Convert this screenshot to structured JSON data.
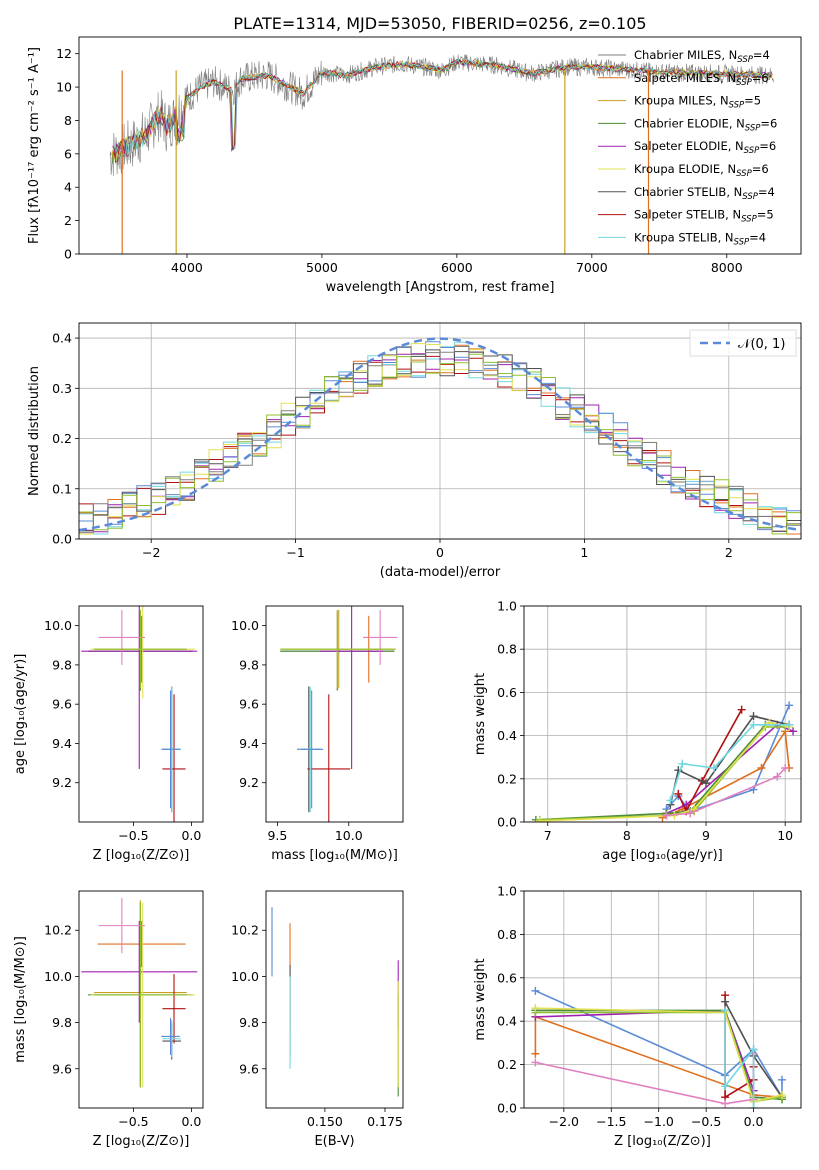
{
  "colors": {
    "gray": "#808080",
    "orange": "#e07020",
    "goldenrod": "#c8a020",
    "green": "#4c8c3c",
    "purple": "#a020b0",
    "yellow": "#e0e050",
    "darkgray": "#505050",
    "darkred": "#b01010",
    "cyan": "#70d8e0",
    "blue": "#5b8bd8",
    "pink": "#e080c0",
    "lime": "#90c030",
    "teal": "#409090"
  },
  "chart_data": [
    {
      "type": "line",
      "title": "PLATE=1314, MJD=53050, FIBERID=0256, z=0.105",
      "xlabel": "wavelength [Angstrom, rest frame]",
      "ylabel": "Flux [fλ10⁻¹⁷ erg cm⁻² s⁻¹ A⁻¹]",
      "xlim": [
        3200,
        8550
      ],
      "ylim": [
        0,
        13
      ],
      "xticks": [
        4000,
        5000,
        6000,
        7000,
        8000
      ],
      "yticks": [
        0,
        2,
        4,
        6,
        8,
        10,
        12
      ],
      "grid": false,
      "legend_position": "right",
      "observed_spectrum": {
        "x": [
          3420,
          3500,
          3600,
          3700,
          3800,
          3850,
          3900,
          4000,
          4100,
          4200,
          4340,
          4400,
          4600,
          4861,
          5000,
          5175,
          5400,
          5600,
          5890,
          6000,
          6300,
          6563,
          6800,
          7000,
          7500,
          8000,
          8350
        ],
        "y": [
          5.9,
          6.2,
          6.6,
          7.2,
          8.4,
          7.6,
          8.1,
          9.3,
          10.0,
          10.3,
          9.8,
          10.5,
          10.7,
          9.6,
          10.9,
          10.7,
          11.2,
          11.4,
          11.0,
          11.5,
          11.3,
          10.8,
          11.2,
          11.2,
          10.9,
          10.8,
          10.7
        ]
      },
      "series": [
        {
          "name": "Chabrier MILES, N_SSP=4",
          "color": "#808080"
        },
        {
          "name": "Salpeter MILES, N_SSP=6",
          "color": "#e07020"
        },
        {
          "name": "Kroupa MILES, N_SSP=5",
          "color": "#c8a020"
        },
        {
          "name": "Chabrier ELODIE, N_SSP=6",
          "color": "#4c8c3c"
        },
        {
          "name": "Salpeter ELODIE, N_SSP=6",
          "color": "#a020b0"
        },
        {
          "name": "Kroupa ELODIE, N_SSP=6",
          "color": "#e0e050"
        },
        {
          "name": "Chabrier STELIB, N_SSP=4",
          "color": "#505050"
        },
        {
          "name": "Salpeter STELIB, N_SSP=5",
          "color": "#b01010"
        },
        {
          "name": "Kroupa STELIB, N_SSP=4",
          "color": "#70d8e0"
        }
      ],
      "vertical_drops": [
        3520,
        3920,
        6800,
        7420
      ]
    },
    {
      "type": "line",
      "xlabel": "(data-model)/error",
      "ylabel": "Normed distribution",
      "xlim": [
        -2.5,
        2.5
      ],
      "ylim": [
        0,
        0.43
      ],
      "xticks": [
        -2,
        -1,
        0,
        1,
        2
      ],
      "yticks": [
        0.0,
        0.1,
        0.2,
        0.3,
        0.4
      ],
      "grid": true,
      "legend_position": "top-right",
      "legend": [
        "𝒩(0, 1)"
      ],
      "reference_curve": {
        "name": "N(0,1)",
        "mean": 0,
        "sd": 1,
        "color": "#5b8bd8",
        "style": "dashed"
      },
      "histogram_bin_width": 0.1,
      "histogram_series_count": 9,
      "histogram_amplitude": 0.36
    },
    {
      "type": "scatter",
      "xlabel": "Z [log₁₀(Z/Z⊙)]",
      "ylabel": "age  [log₁₀(age/yr)]",
      "xlim": [
        -0.97,
        0.1
      ],
      "ylim": [
        9.0,
        10.1
      ],
      "xticks": [
        -0.5,
        0.0
      ],
      "yticks": [
        9.2,
        9.4,
        9.6,
        9.8,
        10.0
      ],
      "points": [
        {
          "x": -0.44,
          "y": 9.87,
          "xerr": 0.45,
          "yerr": 0.2,
          "color": "#808080"
        },
        {
          "x": -0.43,
          "y": 9.88,
          "xerr": 0.38,
          "yerr": 0.17,
          "color": "#e07020"
        },
        {
          "x": -0.44,
          "y": 9.88,
          "xerr": 0.4,
          "yerr": 0.2,
          "color": "#c8a020"
        },
        {
          "x": -0.44,
          "y": 9.87,
          "xerr": 0.45,
          "yerr": 0.2,
          "color": "#4c8c3c"
        },
        {
          "x": -0.45,
          "y": 9.87,
          "xerr": 0.5,
          "yerr": 0.6,
          "color": "#a020b0"
        },
        {
          "x": -0.42,
          "y": 9.88,
          "xerr": 0.45,
          "yerr": 0.25,
          "color": "#e0e050"
        },
        {
          "x": -0.17,
          "y": 9.37,
          "xerr": 0.08,
          "yerr": 0.32,
          "color": "#505050"
        },
        {
          "x": -0.15,
          "y": 9.27,
          "xerr": 0.1,
          "yerr": 0.38,
          "color": "#b01010"
        },
        {
          "x": -0.17,
          "y": 9.37,
          "xerr": 0.08,
          "yerr": 0.32,
          "color": "#70d8e0"
        },
        {
          "x": -0.18,
          "y": 9.37,
          "xerr": 0.08,
          "yerr": 0.3,
          "color": "#5b8bd8"
        },
        {
          "x": -0.6,
          "y": 9.94,
          "xerr": 0.2,
          "yerr": 0.14,
          "color": "#e080c0"
        },
        {
          "x": -0.44,
          "y": 9.88,
          "xerr": 0.4,
          "yerr": 0.2,
          "color": "#90c030"
        }
      ]
    },
    {
      "type": "scatter",
      "xlabel": "mass [log₁₀(M/M⊙)]",
      "ylabel": "",
      "xlim": [
        9.42,
        10.38
      ],
      "ylim": [
        9.0,
        10.1
      ],
      "xticks": [
        9.5,
        10.0
      ],
      "yticks": [
        9.2,
        9.4,
        9.6,
        9.8,
        10.0
      ],
      "points": [
        {
          "x": 9.92,
          "y": 9.87,
          "xerr": 0.4,
          "yerr": 0.2,
          "color": "#808080"
        },
        {
          "x": 10.14,
          "y": 9.88,
          "xerr": 0.1,
          "yerr": 0.17,
          "color": "#e07020"
        },
        {
          "x": 9.93,
          "y": 9.88,
          "xerr": 0.4,
          "yerr": 0.2,
          "color": "#c8a020"
        },
        {
          "x": 9.92,
          "y": 9.87,
          "xerr": 0.4,
          "yerr": 0.2,
          "color": "#4c8c3c"
        },
        {
          "x": 10.02,
          "y": 9.87,
          "xerr": 0.22,
          "yerr": 0.6,
          "color": "#a020b0"
        },
        {
          "x": 9.92,
          "y": 9.88,
          "xerr": 0.4,
          "yerr": 0.2,
          "color": "#e0e050"
        },
        {
          "x": 9.72,
          "y": 9.37,
          "xerr": 0.08,
          "yerr": 0.32,
          "color": "#505050"
        },
        {
          "x": 9.86,
          "y": 9.27,
          "xerr": 0.15,
          "yerr": 0.38,
          "color": "#b01010"
        },
        {
          "x": 9.73,
          "y": 9.37,
          "xerr": 0.08,
          "yerr": 0.32,
          "color": "#70d8e0"
        },
        {
          "x": 9.74,
          "y": 9.37,
          "xerr": 0.08,
          "yerr": 0.3,
          "color": "#5b8bd8"
        },
        {
          "x": 10.22,
          "y": 9.94,
          "xerr": 0.12,
          "yerr": 0.14,
          "color": "#e080c0"
        },
        {
          "x": 9.92,
          "y": 9.88,
          "xerr": 0.4,
          "yerr": 0.2,
          "color": "#90c030"
        }
      ]
    },
    {
      "type": "line",
      "xlabel": "age  [log₁₀(age/yr)]",
      "ylabel": "mass weight",
      "xlim": [
        6.7,
        10.2
      ],
      "ylim": [
        0.0,
        1.0
      ],
      "xticks": [
        7,
        8,
        9,
        10
      ],
      "yticks": [
        0.0,
        0.2,
        0.4,
        0.6,
        0.8,
        1.0
      ],
      "grid": true,
      "series": [
        {
          "color": "#5b8bd8",
          "x": [
            8.5,
            8.65,
            8.8,
            9.6,
            10.05
          ],
          "y": [
            0.06,
            0.12,
            0.05,
            0.15,
            0.54
          ]
        },
        {
          "color": "#e07020",
          "x": [
            8.45,
            8.7,
            9.7,
            10.0,
            10.05
          ],
          "y": [
            0.02,
            0.06,
            0.25,
            0.42,
            0.25
          ]
        },
        {
          "color": "#a020b0",
          "x": [
            8.5,
            8.75,
            9.9,
            10.1
          ],
          "y": [
            0.04,
            0.08,
            0.45,
            0.42
          ]
        },
        {
          "color": "#b01010",
          "x": [
            8.65,
            8.75,
            8.95,
            9.45
          ],
          "y": [
            0.13,
            0.05,
            0.19,
            0.52
          ]
        },
        {
          "color": "#505050",
          "x": [
            8.55,
            8.65,
            9.0,
            9.6,
            10.05
          ],
          "y": [
            0.08,
            0.24,
            0.18,
            0.49,
            0.45
          ]
        },
        {
          "color": "#4c8c3c",
          "x": [
            6.85,
            8.5,
            8.8,
            9.75,
            10.05
          ],
          "y": [
            0.01,
            0.04,
            0.05,
            0.45,
            0.45
          ]
        },
        {
          "color": "#90c030",
          "x": [
            6.9,
            8.5,
            8.85,
            9.75,
            10.0
          ],
          "y": [
            0.01,
            0.03,
            0.05,
            0.44,
            0.44
          ]
        },
        {
          "color": "#e0e050",
          "x": [
            6.9,
            8.6,
            8.85,
            9.8,
            10.05
          ],
          "y": [
            0.005,
            0.03,
            0.06,
            0.46,
            0.44
          ]
        },
        {
          "color": "#e080c0",
          "x": [
            8.5,
            8.8,
            9.9,
            10.0
          ],
          "y": [
            0.03,
            0.04,
            0.21,
            0.25
          ]
        },
        {
          "color": "#70d8e0",
          "x": [
            8.55,
            8.7,
            9.1,
            9.6,
            10.05
          ],
          "y": [
            0.1,
            0.27,
            0.25,
            0.45,
            0.45
          ]
        }
      ]
    },
    {
      "type": "scatter",
      "xlabel": "Z [log₁₀(Z/Z⊙)]",
      "ylabel": "mass [log₁₀(M/M⊙)]",
      "xlim": [
        -0.97,
        0.1
      ],
      "ylim": [
        9.43,
        10.37
      ],
      "xticks": [
        -0.5,
        0.0
      ],
      "yticks": [
        9.6,
        9.8,
        10.0,
        10.2
      ],
      "points": [
        {
          "x": -0.44,
          "y": 9.92,
          "xerr": 0.45,
          "yerr": 0.4,
          "color": "#808080"
        },
        {
          "x": -0.43,
          "y": 10.14,
          "xerr": 0.38,
          "yerr": 0.1,
          "color": "#e07020"
        },
        {
          "x": -0.44,
          "y": 9.93,
          "xerr": 0.4,
          "yerr": 0.4,
          "color": "#c8a020"
        },
        {
          "x": -0.44,
          "y": 9.92,
          "xerr": 0.45,
          "yerr": 0.4,
          "color": "#4c8c3c"
        },
        {
          "x": -0.45,
          "y": 10.02,
          "xerr": 0.5,
          "yerr": 0.22,
          "color": "#a020b0"
        },
        {
          "x": -0.42,
          "y": 9.92,
          "xerr": 0.45,
          "yerr": 0.4,
          "color": "#e0e050"
        },
        {
          "x": -0.17,
          "y": 9.72,
          "xerr": 0.08,
          "yerr": 0.08,
          "color": "#505050"
        },
        {
          "x": -0.15,
          "y": 9.86,
          "xerr": 0.1,
          "yerr": 0.15,
          "color": "#b01010"
        },
        {
          "x": -0.17,
          "y": 9.73,
          "xerr": 0.08,
          "yerr": 0.08,
          "color": "#70d8e0"
        },
        {
          "x": -0.18,
          "y": 9.74,
          "xerr": 0.08,
          "yerr": 0.08,
          "color": "#5b8bd8"
        },
        {
          "x": -0.6,
          "y": 10.22,
          "xerr": 0.2,
          "yerr": 0.12,
          "color": "#e080c0"
        },
        {
          "x": -0.44,
          "y": 9.92,
          "xerr": 0.4,
          "yerr": 0.4,
          "color": "#90c030"
        }
      ]
    },
    {
      "type": "scatter",
      "xlabel": "E(B-V)",
      "ylabel": "",
      "xlim": [
        0.1255,
        0.1825
      ],
      "ylim": [
        9.43,
        10.37
      ],
      "xticks": [
        0.15,
        0.175
      ],
      "yticks": [
        9.6,
        9.8,
        10.0,
        10.2
      ],
      "points": [
        {
          "x": 0.128,
          "y": 10.14,
          "xerr": 0,
          "yerr": 0.1,
          "color": "#e080c0"
        },
        {
          "x": 0.128,
          "y": 10.15,
          "xerr": 0,
          "yerr": 0.15,
          "color": "#5b8bd8"
        },
        {
          "x": 0.1355,
          "y": 10.0,
          "xerr": 0,
          "yerr": 0.23,
          "color": "#e07020"
        },
        {
          "x": 0.1355,
          "y": 9.85,
          "xerr": 0,
          "yerr": 0.2,
          "color": "#505050"
        },
        {
          "x": 0.1355,
          "y": 9.8,
          "xerr": 0,
          "yerr": 0.2,
          "color": "#70d8e0"
        },
        {
          "x": 0.1805,
          "y": 9.92,
          "xerr": 0,
          "yerr": 0.15,
          "color": "#a020b0"
        },
        {
          "x": 0.1805,
          "y": 9.7,
          "xerr": 0,
          "yerr": 0.22,
          "color": "#4c8c3c"
        },
        {
          "x": 0.1805,
          "y": 9.75,
          "xerr": 0,
          "yerr": 0.23,
          "color": "#e0e050"
        }
      ]
    },
    {
      "type": "line",
      "xlabel": "Z [log₁₀(Z/Z⊙)]",
      "ylabel": "mass weight",
      "xlim": [
        -2.42,
        0.5
      ],
      "ylim": [
        0.0,
        1.0
      ],
      "xticks": [
        -2.0,
        -1.5,
        -1.0,
        -0.5,
        0.0
      ],
      "yticks": [
        0.0,
        0.2,
        0.4,
        0.6,
        0.8,
        1.0
      ],
      "grid": true,
      "series": [
        {
          "color": "#5b8bd8",
          "x": [
            -2.3,
            -0.3,
            0.0,
            0.3,
            0.3
          ],
          "y": [
            0.54,
            0.15,
            0.27,
            0.05,
            0.13
          ]
        },
        {
          "color": "#e07020",
          "x": [
            -2.3,
            -2.3,
            0.0,
            0.3
          ],
          "y": [
            0.25,
            0.42,
            0.06,
            0.05
          ]
        },
        {
          "color": "#a020b0",
          "x": [
            -2.3,
            -0.3,
            0.0
          ],
          "y": [
            0.42,
            0.45,
            0.08
          ]
        },
        {
          "color": "#b01010",
          "x": [
            -0.3,
            -0.3,
            0.0,
            0.0
          ],
          "y": [
            0.52,
            0.05,
            0.13,
            0.19
          ]
        },
        {
          "color": "#505050",
          "x": [
            -0.3,
            0.0,
            0.3
          ],
          "y": [
            0.49,
            0.24,
            0.05
          ]
        },
        {
          "color": "#4c8c3c",
          "x": [
            -2.3,
            -0.3,
            0.0,
            0.3
          ],
          "y": [
            0.45,
            0.45,
            0.05,
            0.04
          ]
        },
        {
          "color": "#90c030",
          "x": [
            -2.3,
            -0.3,
            0.0,
            0.3
          ],
          "y": [
            0.44,
            0.44,
            0.03,
            0.05
          ]
        },
        {
          "color": "#e0e050",
          "x": [
            -2.3,
            -0.3,
            0.0,
            0.3
          ],
          "y": [
            0.46,
            0.44,
            0.03,
            0.06
          ]
        },
        {
          "color": "#e080c0",
          "x": [
            -2.3,
            -0.3,
            0.0,
            0.0
          ],
          "y": [
            0.21,
            0.02,
            0.04,
            0.25
          ]
        },
        {
          "color": "#70d8e0",
          "x": [
            -0.3,
            -0.3,
            0.0,
            0.0
          ],
          "y": [
            0.45,
            0.1,
            0.27,
            0.0
          ]
        }
      ]
    }
  ]
}
